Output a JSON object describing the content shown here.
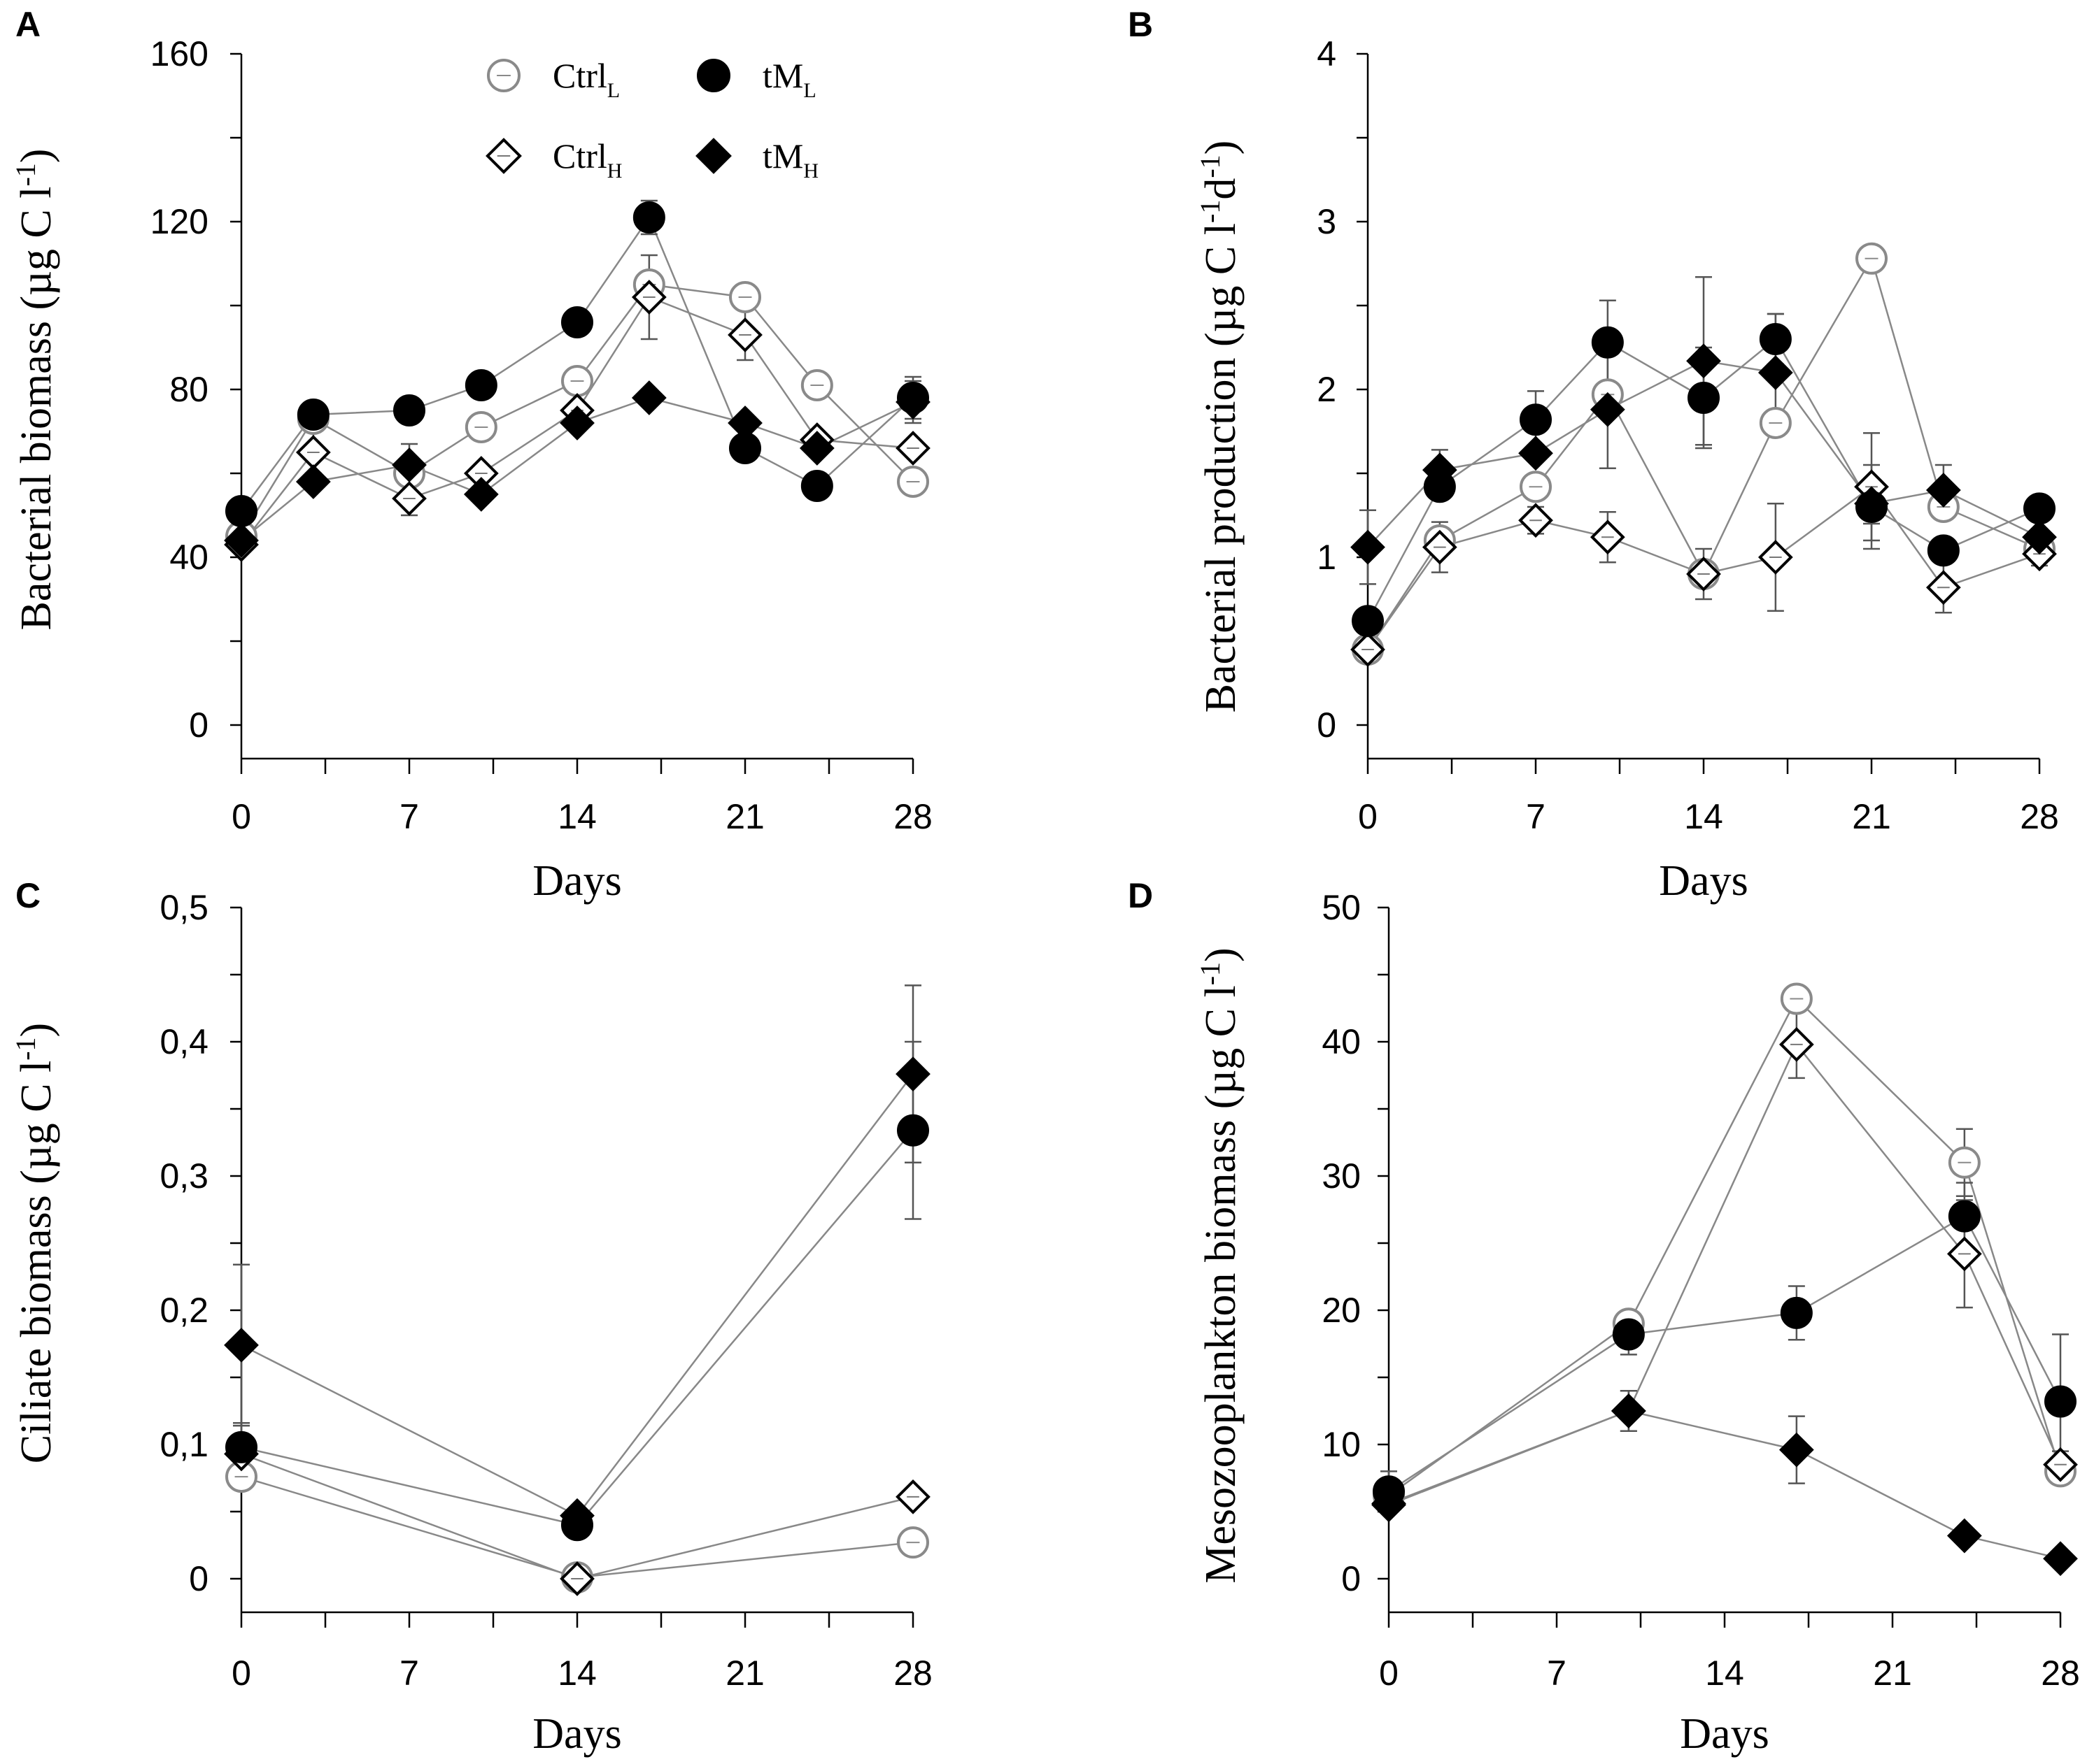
{
  "legend": [
    {
      "key": "ctrlL",
      "main": "Ctrl",
      "sub": "L"
    },
    {
      "key": "tmL",
      "main": "tM",
      "sub": "L"
    },
    {
      "key": "ctrlH",
      "main": "Ctrl",
      "sub": "H"
    },
    {
      "key": "tmH",
      "main": "tM",
      "sub": "H"
    }
  ],
  "series_styles": {
    "ctrlL": {
      "marker": "circle",
      "fill": "#ffffff",
      "stroke": "#8a8a8a"
    },
    "tmL": {
      "marker": "circle",
      "fill": "#000000",
      "stroke": "#000000"
    },
    "ctrlH": {
      "marker": "diamond",
      "fill": "#ffffff",
      "stroke": "#000000"
    },
    "tmH": {
      "marker": "diamond",
      "fill": "#000000",
      "stroke": "#000000"
    }
  },
  "chart_data": [
    {
      "id": "A",
      "type": "line",
      "panel_label": "A",
      "xlabel": "Days",
      "ylabel": "Bacterial biomass (µg C l⁻¹)",
      "xticks": [
        0,
        7,
        14,
        21,
        28
      ],
      "xlim": [
        0,
        28
      ],
      "ylim": [
        0,
        160
      ],
      "yticks": [
        0,
        40,
        80,
        120,
        160
      ],
      "ytick_labels": [
        "0",
        "40",
        "80",
        "120",
        "160"
      ],
      "y_minor": 20,
      "show_legend": true,
      "series": [
        {
          "key": "ctrlL",
          "x": [
            0,
            3,
            7,
            10,
            14,
            17,
            21,
            24,
            28
          ],
          "y": [
            45,
            73,
            60,
            71,
            82,
            105,
            102,
            81,
            58
          ],
          "err": [
            0,
            0,
            0,
            0,
            0,
            0,
            0,
            0,
            0
          ]
        },
        {
          "key": "tmL",
          "x": [
            0,
            3,
            7,
            10,
            14,
            17,
            21,
            24,
            28
          ],
          "y": [
            51,
            74,
            75,
            81,
            96,
            121,
            66,
            57,
            78
          ],
          "err": [
            0,
            3,
            0,
            0,
            0,
            4,
            0,
            0,
            5
          ]
        },
        {
          "key": "ctrlH",
          "x": [
            0,
            3,
            7,
            10,
            14,
            17,
            21,
            24,
            28
          ],
          "y": [
            43,
            65,
            54,
            60,
            75,
            102,
            93,
            68,
            66
          ],
          "err": [
            0,
            5,
            4,
            0,
            0,
            10,
            6,
            0,
            0
          ]
        },
        {
          "key": "tmH",
          "x": [
            0,
            3,
            7,
            10,
            14,
            17,
            21,
            24,
            28
          ],
          "y": [
            44,
            58,
            62,
            55,
            72,
            78,
            72,
            66,
            77
          ],
          "err": [
            0,
            0,
            5,
            0,
            0,
            0,
            0,
            0,
            5
          ]
        }
      ]
    },
    {
      "id": "B",
      "type": "line",
      "panel_label": "B",
      "xlabel": "Days",
      "ylabel": "Bacterial production (µg C l⁻¹d⁻¹)",
      "xticks": [
        0,
        7,
        14,
        21,
        28
      ],
      "xlim": [
        0,
        28
      ],
      "ylim": [
        0,
        4
      ],
      "yticks": [
        0,
        1,
        2,
        3,
        4
      ],
      "ytick_labels": [
        "0",
        "1",
        "2",
        "3",
        "4"
      ],
      "y_minor": 0.5,
      "show_legend": false,
      "series": [
        {
          "key": "ctrlL",
          "x": [
            0,
            3,
            7,
            10,
            14,
            17,
            21,
            24,
            28
          ],
          "y": [
            0.45,
            1.1,
            1.42,
            1.97,
            0.9,
            1.8,
            2.78,
            1.3,
            1.05
          ],
          "err": [
            0,
            0,
            0,
            0,
            0,
            0,
            0,
            0,
            0
          ]
        },
        {
          "key": "tmL",
          "x": [
            0,
            3,
            7,
            10,
            14,
            17,
            21,
            24,
            28
          ],
          "y": [
            0.62,
            1.42,
            1.82,
            2.28,
            1.95,
            2.3,
            1.3,
            1.04,
            1.29
          ],
          "err": [
            0,
            0,
            0.17,
            0.25,
            0.3,
            0.15,
            0.25,
            0,
            0
          ]
        },
        {
          "key": "ctrlH",
          "x": [
            0,
            3,
            7,
            10,
            14,
            17,
            21,
            24,
            28
          ],
          "y": [
            0.45,
            1.06,
            1.22,
            1.12,
            0.9,
            1.0,
            1.42,
            0.82,
            1.02
          ],
          "err": [
            0,
            0.15,
            0.08,
            0.15,
            0.15,
            0.32,
            0.32,
            0.15,
            0.07
          ]
        },
        {
          "key": "tmH",
          "x": [
            0,
            3,
            7,
            10,
            14,
            17,
            21,
            24,
            28
          ],
          "y": [
            1.06,
            1.52,
            1.62,
            1.88,
            2.17,
            2.1,
            1.32,
            1.4,
            1.12
          ],
          "err": [
            0.22,
            0.12,
            0,
            0.35,
            0.5,
            0.35,
            0.12,
            0.15,
            0.15
          ]
        }
      ]
    },
    {
      "id": "C",
      "type": "line",
      "panel_label": "C",
      "xlabel": "Days",
      "ylabel": "Ciliate biomass (µg C l⁻¹)",
      "xticks": [
        0,
        7,
        14,
        21,
        28
      ],
      "xlim": [
        0,
        28
      ],
      "ylim": [
        0,
        0.5
      ],
      "yticks": [
        0,
        0.1,
        0.2,
        0.3,
        0.4,
        0.5
      ],
      "ytick_labels": [
        "0",
        "0,1",
        "0,2",
        "0,3",
        "0,4",
        "0,5"
      ],
      "y_minor": 0.05,
      "show_legend": false,
      "series": [
        {
          "key": "ctrlL",
          "x": [
            0,
            14,
            28
          ],
          "y": [
            0.076,
            0.001,
            0.027
          ],
          "err": [
            0,
            0,
            0
          ]
        },
        {
          "key": "tmL",
          "x": [
            0,
            14,
            28
          ],
          "y": [
            0.098,
            0.04,
            0.334
          ],
          "err": [
            0.018,
            0,
            0.066
          ]
        },
        {
          "key": "ctrlH",
          "x": [
            0,
            14,
            28
          ],
          "y": [
            0.093,
            0.0,
            0.061
          ],
          "err": [
            0,
            0,
            0
          ]
        },
        {
          "key": "tmH",
          "x": [
            0,
            14,
            28
          ],
          "y": [
            0.174,
            0.047,
            0.376
          ],
          "err": [
            0.06,
            0,
            0.066
          ]
        }
      ]
    },
    {
      "id": "D",
      "type": "line",
      "panel_label": "D",
      "xlabel": "Days",
      "ylabel": "Mesozooplankton biomass (µg C l⁻¹)",
      "xticks": [
        0,
        7,
        14,
        21,
        28
      ],
      "xlim": [
        0,
        28
      ],
      "ylim": [
        0,
        50
      ],
      "yticks": [
        0,
        10,
        20,
        30,
        40,
        50
      ],
      "ytick_labels": [
        "0",
        "10",
        "20",
        "30",
        "40",
        "50"
      ],
      "y_minor": 5,
      "show_legend": false,
      "series": [
        {
          "key": "ctrlL",
          "x": [
            0,
            10,
            17,
            24,
            28
          ],
          "y": [
            6.2,
            19.0,
            43.2,
            31.0,
            8.0
          ],
          "err": [
            0,
            0,
            0,
            2.5,
            0
          ]
        },
        {
          "key": "tmL",
          "x": [
            0,
            10,
            17,
            24,
            28
          ],
          "y": [
            6.5,
            18.2,
            19.8,
            27.0,
            13.2
          ],
          "err": [
            1.5,
            1.5,
            2.0,
            2.5,
            5.0
          ]
        },
        {
          "key": "ctrlH",
          "x": [
            0,
            10,
            17,
            24,
            28
          ],
          "y": [
            5.5,
            12.5,
            39.8,
            24.2,
            8.5
          ],
          "err": [
            0,
            1.5,
            2.5,
            4.0,
            1.0
          ]
        },
        {
          "key": "tmH",
          "x": [
            0,
            10,
            17,
            24,
            28
          ],
          "y": [
            5.6,
            12.5,
            9.6,
            3.2,
            1.5
          ],
          "err": [
            0,
            1.5,
            2.5,
            0.5,
            0.3
          ]
        }
      ]
    }
  ]
}
